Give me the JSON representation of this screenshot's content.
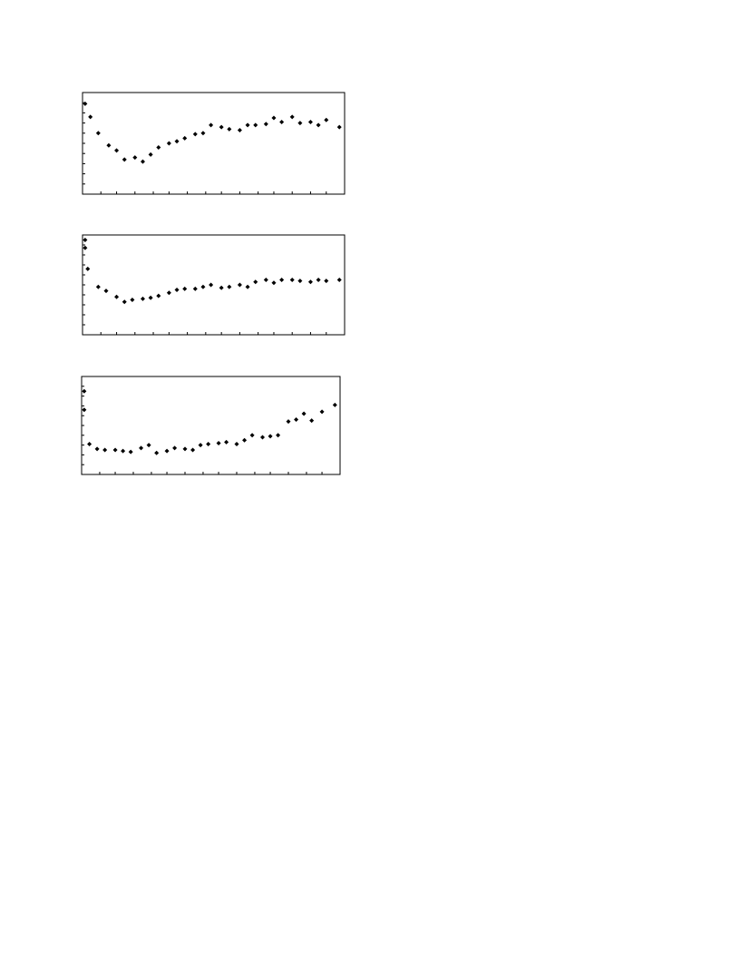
{
  "chart_data": [
    {
      "type": "scatter",
      "color": "#000000",
      "x": [
        1,
        3,
        6,
        10,
        13,
        16,
        20,
        23,
        26,
        29,
        33,
        36,
        39,
        43,
        46,
        49,
        53,
        56,
        60,
        63,
        66,
        70,
        73,
        76,
        80,
        83,
        87,
        90,
        93,
        98
      ],
      "values": [
        89,
        76,
        60,
        48,
        43,
        34,
        36,
        32,
        39,
        46,
        50,
        52,
        55,
        59,
        60,
        68,
        66,
        64,
        63,
        68,
        68,
        69,
        75,
        71,
        76,
        70,
        71,
        68,
        73,
        66
      ],
      "xlim": [
        0,
        100
      ],
      "ylim": [
        0,
        100
      ],
      "xticks": [
        0,
        7,
        13,
        20,
        27,
        33,
        40,
        47,
        53,
        60,
        67,
        73,
        80,
        87,
        93,
        100
      ],
      "yticks": [
        0,
        10,
        20,
        30,
        40,
        50,
        60,
        70,
        80,
        90,
        100
      ]
    },
    {
      "type": "scatter",
      "color": "#000000",
      "x": [
        1,
        1,
        2,
        6,
        9,
        13,
        16,
        19,
        23,
        26,
        29,
        33,
        36,
        39,
        43,
        46,
        49,
        53,
        56,
        60,
        63,
        66,
        70,
        73,
        76,
        80,
        83,
        87,
        90,
        93,
        98
      ],
      "values": [
        95,
        87,
        66,
        48,
        44,
        38,
        33,
        35,
        36,
        37,
        39,
        42,
        45,
        46,
        46,
        48,
        50,
        47,
        48,
        50,
        48,
        53,
        55,
        52,
        55,
        55,
        54,
        53,
        55,
        54,
        55
      ],
      "xlim": [
        0,
        100
      ],
      "ylim": [
        0,
        100
      ],
      "xticks": [
        0,
        7,
        13,
        20,
        27,
        33,
        40,
        47,
        53,
        60,
        67,
        73,
        80,
        87,
        93,
        100
      ],
      "yticks": [
        0,
        10,
        20,
        30,
        40,
        50,
        60,
        70,
        80,
        90,
        100
      ]
    },
    {
      "type": "scatter",
      "color": "#000000",
      "x": [
        1,
        1,
        3,
        6,
        9,
        13,
        16,
        19,
        23,
        26,
        29,
        33,
        36,
        40,
        43,
        46,
        49,
        53,
        56,
        60,
        63,
        66,
        70,
        73,
        76,
        80,
        83,
        86,
        89,
        93,
        98
      ],
      "values": [
        85,
        66,
        31,
        26,
        25,
        25,
        24,
        23,
        27,
        30,
        22,
        24,
        27,
        26,
        25,
        30,
        31,
        32,
        33,
        31,
        35,
        40,
        38,
        39,
        40,
        54,
        56,
        62,
        55,
        64,
        71
      ],
      "xlim": [
        0,
        100
      ],
      "ylim": [
        0,
        100
      ],
      "xticks": [
        0,
        7,
        13,
        20,
        27,
        33,
        40,
        47,
        53,
        60,
        67,
        73,
        80,
        87,
        93,
        100
      ],
      "yticks": [
        0,
        10,
        20,
        30,
        40,
        50,
        60,
        70,
        80,
        90,
        100
      ]
    }
  ]
}
